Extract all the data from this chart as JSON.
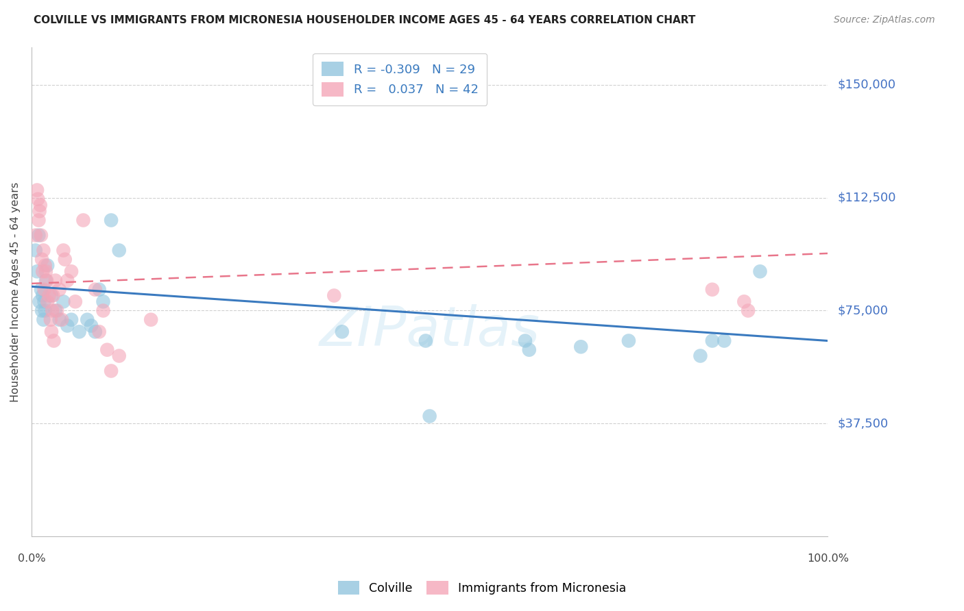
{
  "title": "COLVILLE VS IMMIGRANTS FROM MICRONESIA HOUSEHOLDER INCOME AGES 45 - 64 YEARS CORRELATION CHART",
  "source": "Source: ZipAtlas.com",
  "ylabel": "Householder Income Ages 45 - 64 years",
  "ytick_labels": [
    "$37,500",
    "$75,000",
    "$112,500",
    "$150,000"
  ],
  "ytick_values": [
    37500,
    75000,
    112500,
    150000
  ],
  "ylim": [
    0,
    162500
  ],
  "xlim": [
    0,
    1.0
  ],
  "watermark": "ZIPatlas",
  "blue_color": "#92c5de",
  "pink_color": "#f4a6b8",
  "blue_line_color": "#3a7abf",
  "pink_line_color": "#e8758a",
  "background_color": "#ffffff",
  "grid_color": "#d0d0d0",
  "colville_points": [
    [
      0.005,
      95000
    ],
    [
      0.007,
      88000
    ],
    [
      0.009,
      100000
    ],
    [
      0.01,
      78000
    ],
    [
      0.012,
      82000
    ],
    [
      0.013,
      75000
    ],
    [
      0.014,
      80000
    ],
    [
      0.015,
      72000
    ],
    [
      0.016,
      78000
    ],
    [
      0.017,
      75000
    ],
    [
      0.018,
      85000
    ],
    [
      0.02,
      90000
    ],
    [
      0.025,
      80000
    ],
    [
      0.03,
      75000
    ],
    [
      0.035,
      72000
    ],
    [
      0.04,
      78000
    ],
    [
      0.045,
      70000
    ],
    [
      0.05,
      72000
    ],
    [
      0.06,
      68000
    ],
    [
      0.07,
      72000
    ],
    [
      0.075,
      70000
    ],
    [
      0.08,
      68000
    ],
    [
      0.085,
      82000
    ],
    [
      0.09,
      78000
    ],
    [
      0.1,
      105000
    ],
    [
      0.11,
      95000
    ],
    [
      0.39,
      68000
    ],
    [
      0.495,
      65000
    ],
    [
      0.5,
      40000
    ],
    [
      0.62,
      65000
    ],
    [
      0.625,
      62000
    ],
    [
      0.69,
      63000
    ],
    [
      0.75,
      65000
    ],
    [
      0.84,
      60000
    ],
    [
      0.855,
      65000
    ],
    [
      0.87,
      65000
    ],
    [
      0.915,
      88000
    ]
  ],
  "micronesia_points": [
    [
      0.005,
      100000
    ],
    [
      0.007,
      115000
    ],
    [
      0.008,
      112000
    ],
    [
      0.009,
      105000
    ],
    [
      0.01,
      108000
    ],
    [
      0.011,
      110000
    ],
    [
      0.012,
      100000
    ],
    [
      0.013,
      92000
    ],
    [
      0.014,
      88000
    ],
    [
      0.015,
      95000
    ],
    [
      0.016,
      82000
    ],
    [
      0.017,
      90000
    ],
    [
      0.018,
      88000
    ],
    [
      0.019,
      85000
    ],
    [
      0.02,
      78000
    ],
    [
      0.022,
      80000
    ],
    [
      0.024,
      72000
    ],
    [
      0.025,
      68000
    ],
    [
      0.026,
      75000
    ],
    [
      0.027,
      80000
    ],
    [
      0.028,
      65000
    ],
    [
      0.03,
      85000
    ],
    [
      0.032,
      75000
    ],
    [
      0.035,
      82000
    ],
    [
      0.038,
      72000
    ],
    [
      0.04,
      95000
    ],
    [
      0.042,
      92000
    ],
    [
      0.045,
      85000
    ],
    [
      0.05,
      88000
    ],
    [
      0.055,
      78000
    ],
    [
      0.065,
      105000
    ],
    [
      0.08,
      82000
    ],
    [
      0.085,
      68000
    ],
    [
      0.09,
      75000
    ],
    [
      0.095,
      62000
    ],
    [
      0.1,
      55000
    ],
    [
      0.11,
      60000
    ],
    [
      0.15,
      72000
    ],
    [
      0.38,
      80000
    ],
    [
      0.855,
      82000
    ],
    [
      0.895,
      78000
    ],
    [
      0.9,
      75000
    ]
  ]
}
